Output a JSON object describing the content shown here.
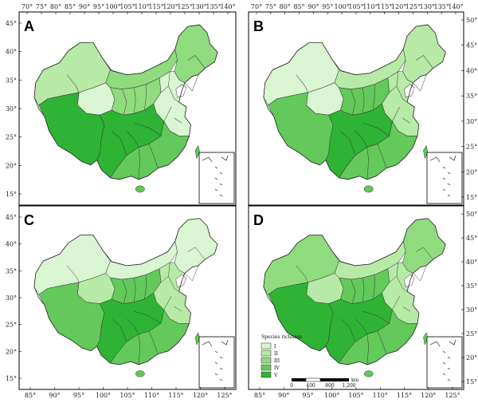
{
  "colors": {
    "I": "#d9f5d1",
    "II": "#b6eaa6",
    "III": "#8fdb7e",
    "IV": "#62c95a",
    "V": "#2fb335",
    "water": "#ffffff"
  },
  "panels": [
    {
      "letter": "A",
      "top_ticks": [
        "70°",
        "75°",
        "80°",
        "85°",
        "90°",
        "95°",
        "100°",
        "105°",
        "110°",
        "115°",
        "120°",
        "125°",
        "130°",
        "135°",
        "140°"
      ],
      "left_ticks": [
        "45°",
        "40°",
        "35°",
        "30°",
        "25°",
        "20°",
        "15°"
      ],
      "west": "II",
      "north": "III",
      "tibet": "V",
      "qinghai": "I",
      "southwest": "V",
      "central": "III",
      "east": "I",
      "northeast": "III",
      "south": "IV"
    },
    {
      "letter": "B",
      "top_ticks": [
        "70°",
        "75°",
        "80°",
        "85°",
        "90°",
        "95°",
        "100°",
        "105°",
        "110°",
        "115°",
        "120°",
        "125°",
        "130°",
        "135°",
        "140°"
      ],
      "right_ticks": [
        "50°",
        "45°",
        "40°",
        "35°",
        "30°",
        "25°",
        "20°",
        "15°"
      ],
      "west": "I",
      "north": "II",
      "tibet": "IV",
      "qinghai": "I",
      "southwest": "V",
      "central": "IV",
      "east": "II",
      "northeast": "II",
      "south": "IV"
    },
    {
      "letter": "C",
      "left_ticks": [
        "45°",
        "40°",
        "35°",
        "30°",
        "25°",
        "20°",
        "15°"
      ],
      "bottom_ticks": [
        "85°",
        "90°",
        "95°",
        "100°",
        "105°",
        "110°",
        "115°",
        "120°",
        "125°"
      ],
      "west": "I",
      "north": "I",
      "tibet": "IV",
      "qinghai": "II",
      "southwest": "V",
      "central": "IV",
      "east": "II",
      "northeast": "I",
      "south": "IV"
    },
    {
      "letter": "D",
      "right_ticks": [
        "50°",
        "45°",
        "40°",
        "35°",
        "30°",
        "25°",
        "20°",
        "15°"
      ],
      "bottom_ticks": [
        "85°",
        "90°",
        "95°",
        "100°",
        "105°",
        "110°",
        "115°",
        "120°",
        "125°"
      ],
      "west": "III",
      "north": "II",
      "tibet": "V",
      "qinghai": "II",
      "southwest": "V",
      "central": "IV",
      "east": "II",
      "northeast": "III",
      "south": "IV"
    }
  ],
  "legend": {
    "title": "Species richness",
    "classes": [
      "I",
      "II",
      "III",
      "IV",
      "V"
    ]
  },
  "scalebar": {
    "labels": [
      "0",
      "400",
      "800",
      "1,200"
    ],
    "unit": "km"
  }
}
